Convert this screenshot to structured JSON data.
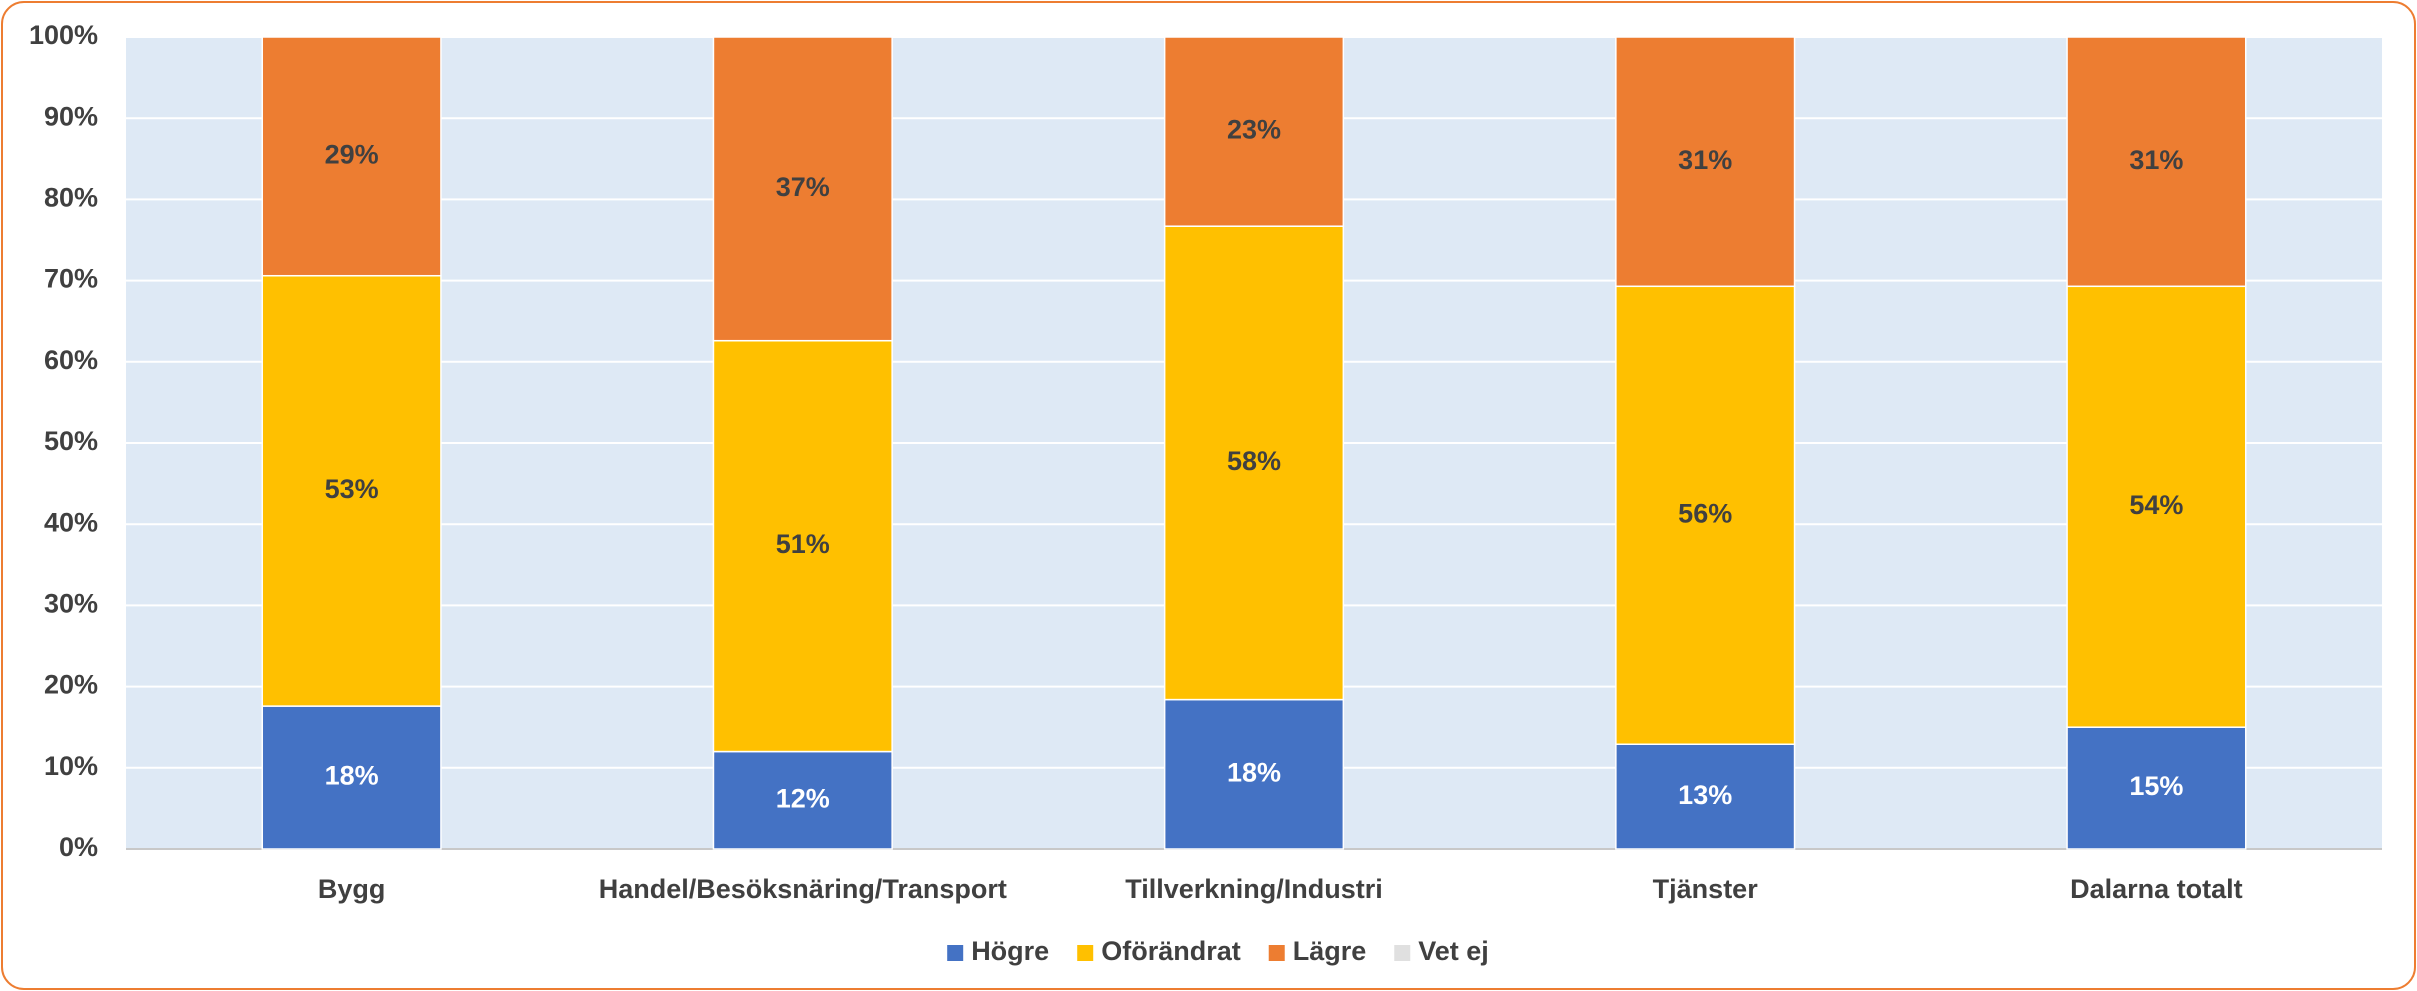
{
  "chart_data": {
    "type": "stacked_bar",
    "categories": [
      "Bygg",
      "Handel/Besöksnäring/Transport",
      "Tillverkning/Industri",
      "Tjänster",
      "Dalarna totalt"
    ],
    "series": [
      {
        "name": "Högre",
        "color": "#4472c4",
        "values": [
          17.6,
          12.0,
          18.4,
          12.9,
          15.0
        ],
        "value_labels": [
          "18%",
          "12%",
          "18%",
          "13%",
          "15%"
        ]
      },
      {
        "name": "Oförändrat",
        "color": "#ffc000",
        "values": [
          53.0,
          50.6,
          58.3,
          56.4,
          54.3
        ],
        "value_labels": [
          "53%",
          "51%",
          "58%",
          "56%",
          "54%"
        ]
      },
      {
        "name": "Lägre",
        "color": "#ed7d31",
        "values": [
          29.4,
          37.4,
          23.3,
          30.7,
          30.7
        ],
        "value_labels": [
          "29%",
          "37%",
          "23%",
          "31%",
          "31%"
        ]
      },
      {
        "name": "Vet ej",
        "color": "#e0e0e0",
        "values": [
          0,
          0,
          0,
          0,
          0
        ]
      }
    ],
    "ylim": [
      0,
      100
    ],
    "yticks": [
      {
        "value": 0,
        "label": "0%"
      },
      {
        "value": 10,
        "label": "10%"
      },
      {
        "value": 20,
        "label": "20%"
      },
      {
        "value": 30,
        "label": "30%"
      },
      {
        "value": 40,
        "label": "40%"
      },
      {
        "value": 50,
        "label": "50%"
      },
      {
        "value": 60,
        "label": "60%"
      },
      {
        "value": 70,
        "label": "70%"
      },
      {
        "value": 80,
        "label": "80%"
      },
      {
        "value": 90,
        "label": "90%"
      },
      {
        "value": 100,
        "label": "100%"
      }
    ],
    "grid": true,
    "legend": "bottom"
  }
}
